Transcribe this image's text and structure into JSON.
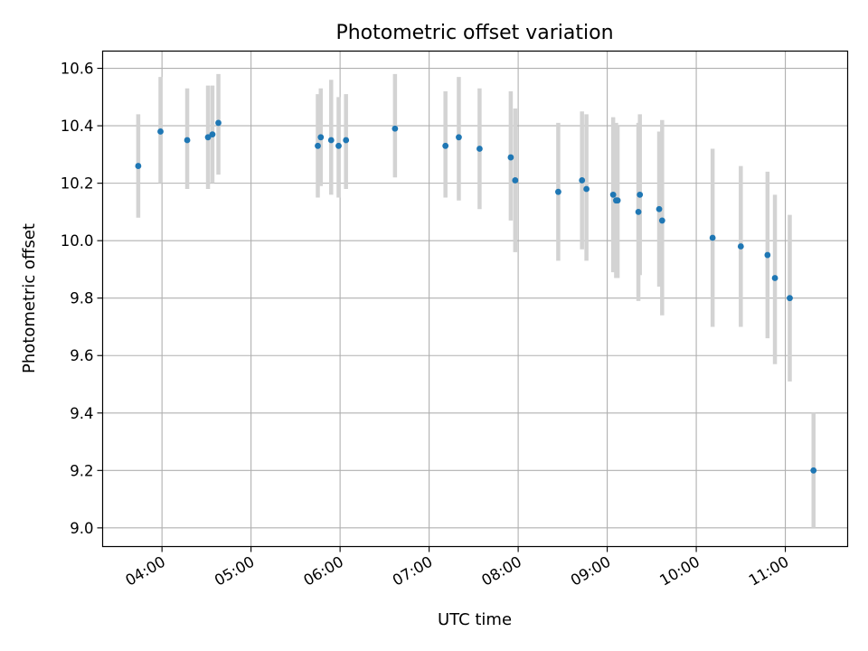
{
  "chart_data": {
    "type": "scatter",
    "title": "Photometric offset variation",
    "xlabel": "UTC time",
    "ylabel": "Photometric offset",
    "xlim": [
      "03:20",
      "11:42"
    ],
    "ylim": [
      8.935,
      10.66
    ],
    "x_ticks": [
      "04:00",
      "05:00",
      "06:00",
      "07:00",
      "08:00",
      "09:00",
      "10:00",
      "11:00"
    ],
    "y_ticks": [
      "9.0",
      "9.2",
      "9.4",
      "9.6",
      "9.8",
      "10.0",
      "10.2",
      "10.4",
      "10.6"
    ],
    "grid": true,
    "colors": {
      "marker": "#1f77b4",
      "errorbar": "#d3d3d3",
      "grid": "#b0b0b0"
    },
    "series": [
      {
        "points": [
          {
            "time": "03:44",
            "value": 10.26,
            "low": 10.08,
            "high": 10.44
          },
          {
            "time": "03:59",
            "value": 10.38,
            "low": 10.2,
            "high": 10.57
          },
          {
            "time": "04:17",
            "value": 10.35,
            "low": 10.18,
            "high": 10.53
          },
          {
            "time": "04:31",
            "value": 10.36,
            "low": 10.18,
            "high": 10.54
          },
          {
            "time": "04:34",
            "value": 10.37,
            "low": 10.2,
            "high": 10.54
          },
          {
            "time": "04:38",
            "value": 10.41,
            "low": 10.23,
            "high": 10.58
          },
          {
            "time": "05:45",
            "value": 10.33,
            "low": 10.15,
            "high": 10.51
          },
          {
            "time": "05:47",
            "value": 10.36,
            "low": 10.19,
            "high": 10.53
          },
          {
            "time": "05:54",
            "value": 10.35,
            "low": 10.16,
            "high": 10.56
          },
          {
            "time": "05:59",
            "value": 10.33,
            "low": 10.15,
            "high": 10.5
          },
          {
            "time": "06:04",
            "value": 10.35,
            "low": 10.18,
            "high": 10.51
          },
          {
            "time": "06:37",
            "value": 10.39,
            "low": 10.22,
            "high": 10.58
          },
          {
            "time": "07:11",
            "value": 10.33,
            "low": 10.15,
            "high": 10.52
          },
          {
            "time": "07:20",
            "value": 10.36,
            "low": 10.14,
            "high": 10.57
          },
          {
            "time": "07:34",
            "value": 10.32,
            "low": 10.11,
            "high": 10.53
          },
          {
            "time": "07:55",
            "value": 10.29,
            "low": 10.07,
            "high": 10.52
          },
          {
            "time": "07:58",
            "value": 10.21,
            "low": 9.96,
            "high": 10.46
          },
          {
            "time": "08:27",
            "value": 10.17,
            "low": 9.93,
            "high": 10.41
          },
          {
            "time": "08:43",
            "value": 10.21,
            "low": 9.97,
            "high": 10.45
          },
          {
            "time": "08:46",
            "value": 10.18,
            "low": 9.93,
            "high": 10.44
          },
          {
            "time": "09:04",
            "value": 10.16,
            "low": 9.89,
            "high": 10.43
          },
          {
            "time": "09:06",
            "value": 10.14,
            "low": 9.87,
            "high": 10.41
          },
          {
            "time": "09:07",
            "value": 10.14,
            "low": 9.87,
            "high": 10.4
          },
          {
            "time": "09:21",
            "value": 10.1,
            "low": 9.79,
            "high": 10.41
          },
          {
            "time": "09:22",
            "value": 10.16,
            "low": 9.88,
            "high": 10.44
          },
          {
            "time": "09:35",
            "value": 10.11,
            "low": 9.84,
            "high": 10.38
          },
          {
            "time": "09:37",
            "value": 10.07,
            "low": 9.74,
            "high": 10.42
          },
          {
            "time": "10:11",
            "value": 10.01,
            "low": 9.7,
            "high": 10.32
          },
          {
            "time": "10:30",
            "value": 9.98,
            "low": 9.7,
            "high": 10.26
          },
          {
            "time": "10:48",
            "value": 9.95,
            "low": 9.66,
            "high": 10.24
          },
          {
            "time": "10:53",
            "value": 9.87,
            "low": 9.57,
            "high": 10.16
          },
          {
            "time": "11:03",
            "value": 9.8,
            "low": 9.51,
            "high": 10.09
          },
          {
            "time": "11:19",
            "value": 9.2,
            "low": 9.0,
            "high": 9.4
          }
        ]
      }
    ]
  }
}
